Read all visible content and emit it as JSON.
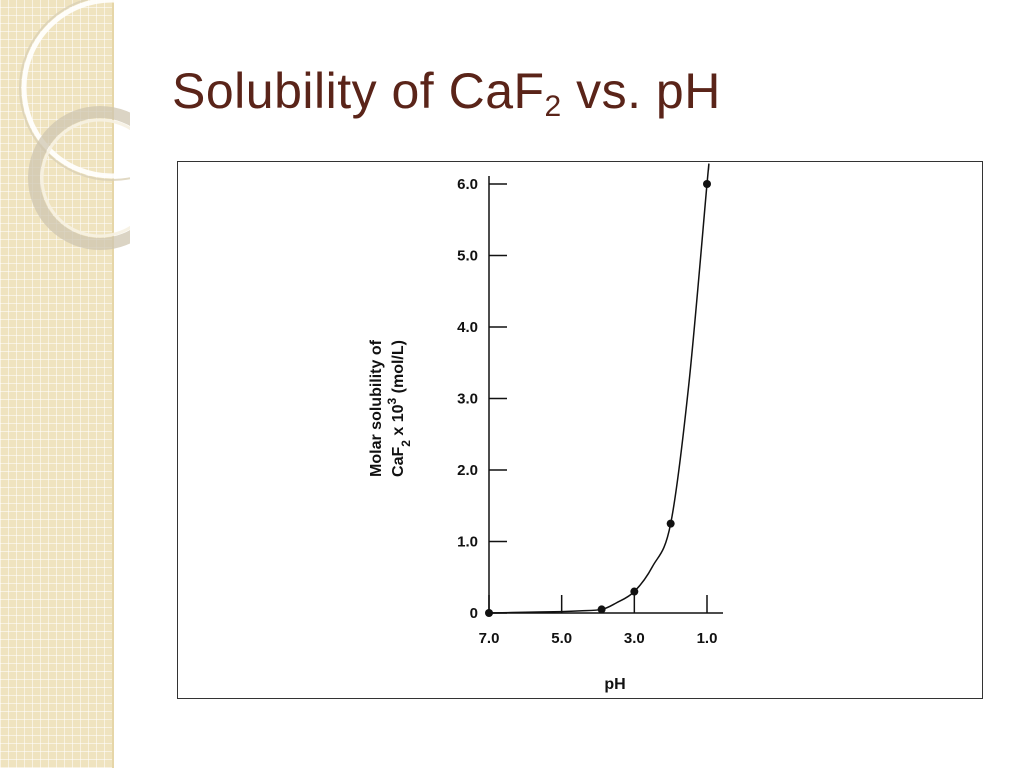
{
  "slide": {
    "title_main": "Solubility of CaF",
    "title_sub": "2",
    "title_rest": " vs. pH"
  },
  "chart_data": {
    "type": "line",
    "xlabel": "pH",
    "ylabel_line1": "Molar solubility of",
    "ylabel_line2_a": "CaF",
    "ylabel_line2_sub": "2",
    "ylabel_line2_b": " x 10",
    "ylabel_line2_sup": "3",
    "ylabel_line2_c": " (mol/L)",
    "x_reversed": true,
    "xlim": [
      7.0,
      1.0
    ],
    "ylim": [
      0,
      6.0
    ],
    "x_ticks": [
      7.0,
      5.0,
      3.0,
      1.0
    ],
    "x_tick_labels": [
      "7.0",
      "5.0",
      "3.0",
      "1.0"
    ],
    "y_ticks": [
      0,
      1.0,
      2.0,
      3.0,
      4.0,
      5.0,
      6.0
    ],
    "y_tick_labels": [
      "0",
      "1.0",
      "2.0",
      "3.0",
      "4.0",
      "5.0",
      "6.0"
    ],
    "points": [
      {
        "x": 7.0,
        "y": 0.0
      },
      {
        "x": 3.9,
        "y": 0.05
      },
      {
        "x": 3.0,
        "y": 0.3
      },
      {
        "x": 2.0,
        "y": 1.25
      },
      {
        "x": 1.0,
        "y": 6.0
      }
    ],
    "curve": [
      {
        "x": 7.0,
        "y": 0.0
      },
      {
        "x": 6.0,
        "y": 0.01
      },
      {
        "x": 5.0,
        "y": 0.02
      },
      {
        "x": 4.5,
        "y": 0.03
      },
      {
        "x": 3.9,
        "y": 0.05
      },
      {
        "x": 3.5,
        "y": 0.14
      },
      {
        "x": 3.0,
        "y": 0.3
      },
      {
        "x": 2.5,
        "y": 0.65
      },
      {
        "x": 2.0,
        "y": 1.25
      },
      {
        "x": 1.5,
        "y": 3.2
      },
      {
        "x": 1.0,
        "y": 6.0
      },
      {
        "x": 0.96,
        "y": 6.2
      }
    ],
    "grid": false,
    "legend": "none"
  }
}
